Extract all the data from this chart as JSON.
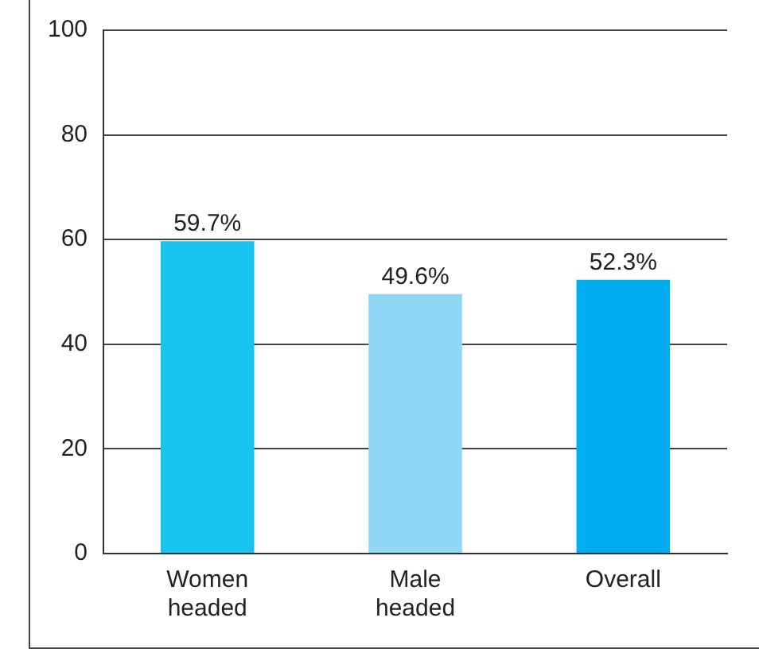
{
  "chart_data": {
    "type": "bar",
    "categories": [
      "Women headed",
      "Male headed",
      "Overall"
    ],
    "values": [
      59.7,
      49.6,
      52.3
    ],
    "colors": [
      "#19c3f0",
      "#8fd8f5",
      "#00aeef"
    ],
    "value_labels": [
      "59.7%",
      "49.6%",
      "52.3%"
    ],
    "ylim": [
      0,
      100
    ],
    "yticks": [
      0,
      20,
      40,
      60,
      80,
      100
    ],
    "grid": "y",
    "legend": false
  }
}
